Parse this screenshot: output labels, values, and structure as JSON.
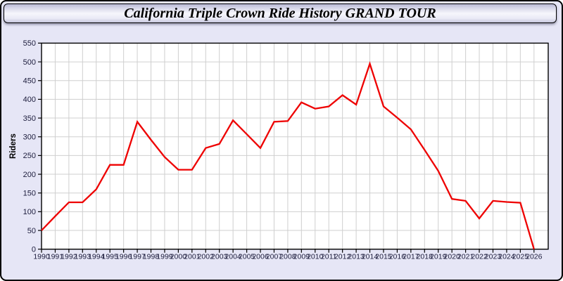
{
  "window": {
    "title": "California Triple Crown Ride History GRAND TOUR"
  },
  "chart_data": {
    "type": "line",
    "title": "California Triple Crown Ride History GRAND TOUR",
    "xlabel": "",
    "ylabel": "Riders",
    "ylim": [
      0,
      550
    ],
    "ytick_step": 50,
    "grid": true,
    "legend": "none",
    "categories": [
      "1990",
      "1991",
      "1992",
      "1993",
      "1994",
      "1995",
      "1996",
      "1997",
      "1998",
      "1999",
      "2000",
      "2001",
      "2002",
      "2003",
      "2004",
      "2005",
      "2006",
      "2007",
      "2008",
      "2009",
      "2010",
      "2011",
      "2012",
      "2013",
      "2014",
      "2015",
      "2016",
      "2017",
      "2018",
      "2019",
      "2020",
      "2021",
      "2022",
      "2023",
      "2024",
      "2025",
      "2026"
    ],
    "series": [
      {
        "name": "Riders",
        "color": "#ee0000",
        "values": [
          50,
          88,
          125,
          125,
          160,
          225,
          225,
          340,
          292,
          246,
          212,
          212,
          270,
          281,
          344,
          307,
          270,
          340,
          342,
          392,
          375,
          381,
          411,
          386,
          495,
          381,
          351,
          320,
          265,
          209,
          134,
          129,
          82,
          129,
          126,
          124,
          0
        ]
      }
    ]
  },
  "colors": {
    "page_bg": "#e6e6f6",
    "plot_bg": "#ffffff",
    "grid_line": "#cfcfcf",
    "axis_line": "#000000",
    "tick_label": "#1c1c3c",
    "axis_title": "#000000",
    "line": "#ee0000"
  }
}
